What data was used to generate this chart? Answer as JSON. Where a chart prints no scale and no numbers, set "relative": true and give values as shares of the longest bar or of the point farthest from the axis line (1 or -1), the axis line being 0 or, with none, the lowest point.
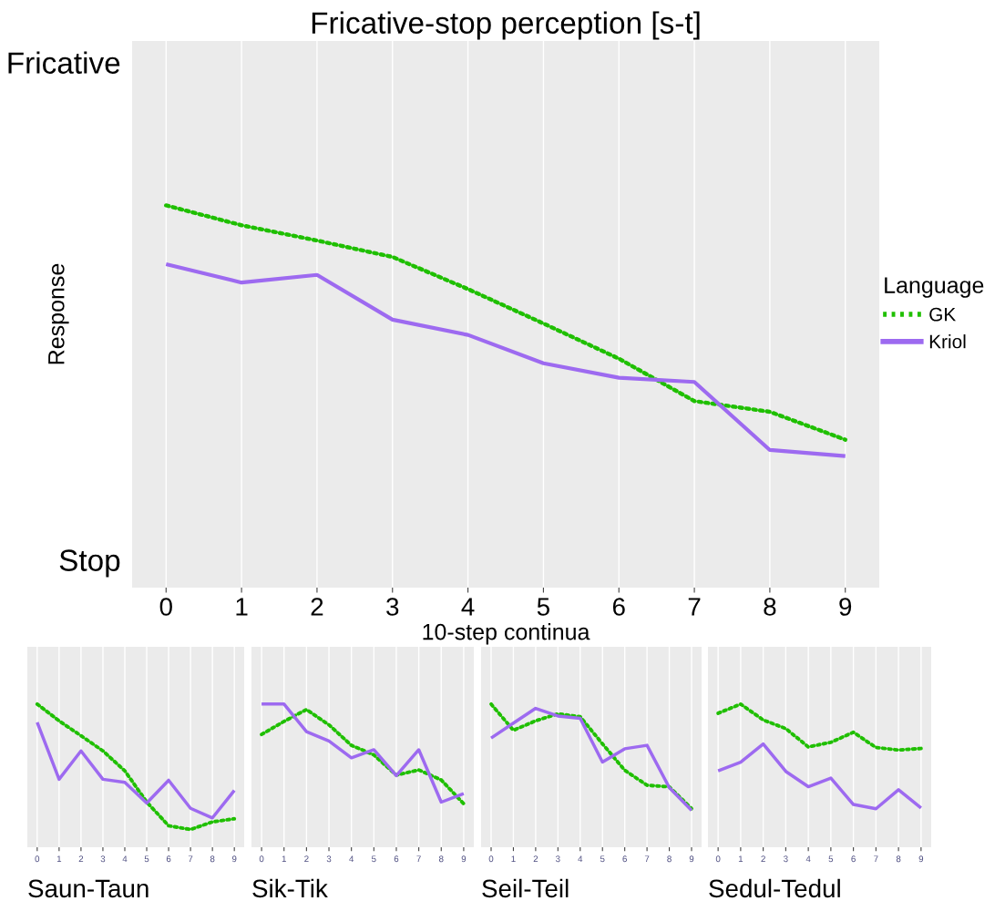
{
  "chart_data": [
    {
      "type": "line",
      "title": "Fricative-stop perception [s-t]",
      "xlabel": "10-step continua",
      "ylabel": "Response",
      "legend_title": "Language",
      "legend": "right",
      "grid": true,
      "categories": [
        "0",
        "1",
        "2",
        "3",
        "4",
        "5",
        "6",
        "7",
        "8",
        "9"
      ],
      "relative": true,
      "annotations": [
        "Fricative",
        "Stop"
      ],
      "series": [
        {
          "name": "GK",
          "color": "#1fbf00",
          "line_style": "dotted",
          "values": [
            1,
            0.948,
            0.908,
            0.865,
            0.781,
            0.691,
            0.599,
            0.488,
            0.46,
            0.387
          ]
        },
        {
          "name": "Kriol",
          "color": "#9d6af0",
          "line_style": "solid",
          "values": [
            0.846,
            0.798,
            0.818,
            0.701,
            0.661,
            0.587,
            0.549,
            0.538,
            0.36,
            0.344
          ]
        }
      ]
    },
    {
      "type": "line",
      "xlabel": "Saun-Taun",
      "relative": true,
      "grid": "x",
      "categories": [
        "0",
        "1",
        "2",
        "3",
        "4",
        "5",
        "6",
        "7",
        "8",
        "9"
      ],
      "series": [
        {
          "color": "#1fbf00",
          "line_style": "dotted",
          "values": [
            1,
            0.883,
            0.779,
            0.673,
            0.534,
            0.316,
            0.15,
            0.124,
            0.177,
            0.199
          ]
        },
        {
          "color": "#9d6af0",
          "line_style": "solid",
          "values": [
            0.872,
            0.475,
            0.673,
            0.475,
            0.453,
            0.309,
            0.468,
            0.272,
            0.205,
            0.397
          ]
        }
      ]
    },
    {
      "type": "line",
      "xlabel": "Sik-Tik",
      "relative": true,
      "grid": "x",
      "categories": [
        "0",
        "1",
        "2",
        "3",
        "4",
        "5",
        "6",
        "7",
        "8",
        "9"
      ],
      "series": [
        {
          "color": "#1fbf00",
          "line_style": "dotted",
          "values": [
            0.788,
            0.879,
            0.962,
            0.855,
            0.712,
            0.645,
            0.504,
            0.54,
            0.47,
            0.304
          ]
        },
        {
          "color": "#9d6af0",
          "line_style": "solid",
          "values": [
            1,
            1,
            0.808,
            0.742,
            0.625,
            0.681,
            0.5,
            0.681,
            0.315,
            0.375
          ]
        }
      ]
    },
    {
      "type": "line",
      "xlabel": "Seil-Teil",
      "relative": true,
      "grid": "x",
      "categories": [
        "0",
        "1",
        "2",
        "3",
        "4",
        "5",
        "6",
        "7",
        "8",
        "9"
      ],
      "series": [
        {
          "color": "#1fbf00",
          "line_style": "dotted",
          "values": [
            1,
            0.817,
            0.883,
            0.932,
            0.912,
            0.722,
            0.538,
            0.433,
            0.422,
            0.27
          ]
        },
        {
          "color": "#9d6af0",
          "line_style": "solid",
          "values": [
            0.763,
            0.867,
            0.97,
            0.917,
            0.9,
            0.595,
            0.688,
            0.712,
            0.417,
            0.258
          ]
        }
      ]
    },
    {
      "type": "line",
      "xlabel": "Sedul-Tedul",
      "relative": true,
      "grid": "x",
      "categories": [
        "0",
        "1",
        "2",
        "3",
        "4",
        "5",
        "6",
        "7",
        "8",
        "9"
      ],
      "series": [
        {
          "color": "#1fbf00",
          "line_style": "dotted",
          "values": [
            0.936,
            1,
            0.889,
            0.829,
            0.701,
            0.733,
            0.803,
            0.697,
            0.679,
            0.69
          ]
        },
        {
          "color": "#9d6af0",
          "line_style": "solid",
          "values": [
            0.534,
            0.594,
            0.722,
            0.53,
            0.423,
            0.483,
            0.299,
            0.269,
            0.402,
            0.274
          ]
        }
      ]
    }
  ]
}
